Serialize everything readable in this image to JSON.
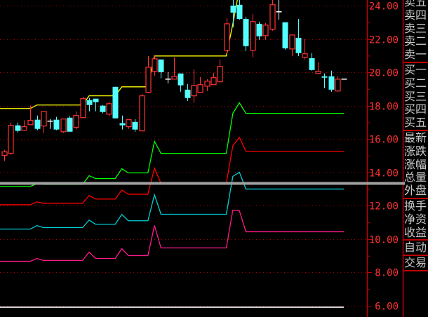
{
  "chart_data": {
    "type": "candlestick",
    "title": "",
    "ylim": [
      5.7,
      24.35
    ],
    "y_ticks": [
      "24.00",
      "22.00",
      "20.00",
      "18.00",
      "16.00",
      "14.00",
      "12.00",
      "10.00",
      "8.00",
      "6.00"
    ],
    "grid": true,
    "colors": {
      "up": "#ff3333",
      "down": "#54ffff",
      "doji": "#ffffff",
      "grid": "#b00000",
      "axis": "#c00000",
      "axis_text": "#ff3333"
    },
    "candles": [
      [
        15.02,
        15.35,
        14.68,
        15.23
      ],
      [
        15.14,
        16.99,
        15.06,
        16.82
      ],
      [
        16.82,
        16.99,
        16.4,
        16.49
      ],
      [
        16.53,
        17.12,
        16.49,
        16.74
      ],
      [
        16.86,
        18.0,
        16.86,
        17.12
      ],
      [
        17.16,
        17.41,
        16.53,
        16.61
      ],
      [
        16.78,
        17.66,
        16.36,
        17.66
      ],
      [
        17.07,
        17.2,
        16.61,
        17.07
      ],
      [
        17.16,
        17.33,
        16.53,
        16.57
      ],
      [
        16.44,
        17.2,
        16.36,
        17.2
      ],
      [
        17.28,
        17.37,
        16.44,
        16.44
      ],
      [
        16.7,
        17.66,
        16.57,
        17.41
      ],
      [
        17.28,
        18.54,
        17.28,
        18.42
      ],
      [
        18.33,
        18.46,
        17.66,
        18.04
      ],
      [
        18.42,
        18.42,
        17.66,
        18.21
      ],
      [
        18.0,
        18.04,
        17.54,
        17.62
      ],
      [
        17.49,
        18.21,
        17.37,
        18.12
      ],
      [
        19.13,
        19.13,
        17.24,
        17.24
      ],
      [
        16.95,
        17.41,
        16.57,
        16.82
      ],
      [
        16.74,
        17.16,
        16.61,
        17.16
      ],
      [
        17.03,
        17.2,
        16.44,
        16.57
      ],
      [
        16.49,
        18.71,
        16.44,
        18.59
      ],
      [
        18.8,
        20.98,
        18.75,
        20.31
      ],
      [
        20.06,
        20.98,
        19.8,
        20.81
      ],
      [
        20.77,
        20.77,
        19.64,
        20.01
      ],
      [
        19.59,
        20.01,
        19.34,
        19.59
      ],
      [
        19.59,
        20.9,
        19.59,
        19.76
      ],
      [
        19.93,
        19.93,
        18.84,
        19.22
      ],
      [
        18.96,
        19.3,
        18.29,
        18.46
      ],
      [
        18.59,
        20.18,
        18.17,
        19.22
      ],
      [
        18.8,
        19.72,
        18.8,
        19.26
      ],
      [
        19.17,
        19.59,
        18.88,
        19.47
      ],
      [
        19.26,
        19.97,
        19.26,
        19.68
      ],
      [
        19.43,
        20.77,
        19.43,
        20.35
      ],
      [
        21.32,
        23.25,
        21.11,
        22.91
      ],
      [
        24.0,
        24.34,
        22.7,
        23.58
      ],
      [
        24.05,
        24.34,
        23.16,
        23.2
      ],
      [
        23.2,
        23.33,
        21.27,
        21.57
      ],
      [
        21.32,
        23.5,
        20.9,
        23.04
      ],
      [
        22.91,
        23.04,
        21.95,
        22.16
      ],
      [
        22.2,
        22.95,
        21.95,
        22.83
      ],
      [
        22.58,
        24.34,
        22.49,
        24.05
      ],
      [
        23.63,
        24.34,
        23.16,
        23.63
      ],
      [
        23.0,
        23.0,
        21.36,
        21.44
      ],
      [
        21.4,
        22.24,
        20.98,
        22.24
      ],
      [
        22.07,
        23.2,
        20.98,
        21.15
      ],
      [
        20.9,
        21.99,
        20.77,
        21.11
      ],
      [
        20.85,
        21.15,
        20.1,
        20.14
      ],
      [
        19.93,
        20.6,
        19.93,
        20.06
      ],
      [
        19.76,
        19.93,
        19.05,
        19.68
      ],
      [
        19.76,
        20.1,
        18.84,
        18.96
      ],
      [
        18.88,
        19.76,
        18.84,
        19.59
      ],
      [
        19.59,
        19.59,
        19.59,
        19.59
      ]
    ],
    "series": [
      {
        "color": "#ffff00",
        "values": [
          17.83,
          17.83,
          17.83,
          17.83,
          17.83,
          18.04,
          18.04,
          18.04,
          18.04,
          18.04,
          18.04,
          18.04,
          18.04,
          18.59,
          18.59,
          18.59,
          18.59,
          18.59,
          19.13,
          19.13,
          19.13,
          19.13,
          19.13,
          20.98,
          20.98,
          20.98,
          20.98,
          20.98,
          20.98,
          20.98,
          20.98,
          20.98,
          20.98,
          20.98,
          20.98,
          22.9,
          25.0
        ]
      },
      {
        "color": "#00ff00",
        "values": [
          13.16,
          13.16,
          13.16,
          13.16,
          13.16,
          13.32,
          13.28,
          13.28,
          13.28,
          13.28,
          13.28,
          13.28,
          13.28,
          13.8,
          13.63,
          13.63,
          13.63,
          13.63,
          14.22,
          13.97,
          13.97,
          13.97,
          13.97,
          15.86,
          15.14,
          15.14,
          15.14,
          15.14,
          15.14,
          15.14,
          15.14,
          15.14,
          15.14,
          15.14,
          15.14,
          17.54,
          18.17,
          17.54,
          17.54,
          17.54,
          17.54,
          17.54,
          17.54,
          17.54,
          17.54,
          17.54,
          17.54,
          17.54,
          17.54,
          17.54,
          17.54,
          17.54,
          17.54
        ]
      },
      {
        "color": "#ff0000",
        "values": [
          12.06,
          12.06,
          12.06,
          12.06,
          12.06,
          12.23,
          12.15,
          12.15,
          12.15,
          12.15,
          12.15,
          12.15,
          12.15,
          12.61,
          12.4,
          12.4,
          12.4,
          12.4,
          12.94,
          12.69,
          12.69,
          12.69,
          12.69,
          14.26,
          13.34,
          13.34,
          13.34,
          13.34,
          13.34,
          13.34,
          13.34,
          13.34,
          13.34,
          13.34,
          13.34,
          15.6,
          16.1,
          15.27,
          15.27,
          15.27,
          15.27,
          15.27,
          15.27,
          15.27,
          15.27,
          15.27,
          15.27,
          15.27,
          15.27,
          15.27,
          15.27,
          15.27,
          15.27
        ]
      },
      {
        "color": "#00d0d8",
        "values": [
          10.6,
          10.6,
          10.6,
          10.6,
          10.6,
          10.81,
          10.69,
          10.69,
          10.69,
          10.69,
          10.69,
          10.69,
          10.69,
          11.14,
          10.89,
          10.89,
          10.89,
          10.89,
          11.48,
          11.1,
          11.1,
          11.1,
          11.1,
          12.66,
          11.49,
          11.49,
          11.49,
          11.49,
          11.49,
          11.49,
          11.49,
          11.49,
          11.49,
          11.49,
          11.49,
          13.76,
          14.01,
          13.0,
          13.0,
          13.0,
          13.0,
          13.0,
          13.0,
          13.0,
          13.0,
          13.0,
          13.0,
          13.0,
          13.0,
          13.0,
          13.0,
          13.0,
          13.0
        ]
      },
      {
        "color": "#ff1a8c",
        "values": [
          8.67,
          8.67,
          8.67,
          8.67,
          8.67,
          8.84,
          8.72,
          8.72,
          8.72,
          8.72,
          8.72,
          8.72,
          8.72,
          9.22,
          8.84,
          8.84,
          8.84,
          8.84,
          9.43,
          9.01,
          9.01,
          9.01,
          9.01,
          10.82,
          9.47,
          9.47,
          9.47,
          9.47,
          9.47,
          9.47,
          9.47,
          9.47,
          9.47,
          9.47,
          9.47,
          11.74,
          11.7,
          10.44,
          10.44,
          10.44,
          10.44,
          10.44,
          10.44,
          10.44,
          10.44,
          10.44,
          10.44,
          10.44,
          10.44,
          10.44,
          10.44,
          10.44,
          10.44
        ]
      }
    ],
    "horizontal_lines": [
      {
        "price": 13.34,
        "color": "#a0a0a0"
      },
      {
        "price": 5.92,
        "color": "#d0d0d0"
      }
    ]
  },
  "panel": {
    "rows": [
      {
        "label": "卖五",
        "sep_after": false
      },
      {
        "label": "卖四",
        "sep_after": false
      },
      {
        "label": "卖三",
        "sep_after": false
      },
      {
        "label": "卖二",
        "sep_after": false
      },
      {
        "label": "卖一",
        "sep_after": true
      },
      {
        "label": "买一",
        "sep_after": false
      },
      {
        "label": "买二",
        "sep_after": false
      },
      {
        "label": "买三",
        "sep_after": false
      },
      {
        "label": "买四",
        "sep_after": false
      },
      {
        "label": "买五",
        "sep_after": true
      },
      {
        "label": "最新",
        "sep_after": false
      },
      {
        "label": "涨跌",
        "sep_after": false
      },
      {
        "label": "涨幅",
        "sep_after": false
      },
      {
        "label": "总量",
        "sep_after": false
      },
      {
        "label": "外盘",
        "sep_after": true
      },
      {
        "label": "换手",
        "sep_after": false
      },
      {
        "label": "净资",
        "sep_after": false
      },
      {
        "label": "收益",
        "sep_after": true
      },
      {
        "label": "自动",
        "sep_after": true
      },
      {
        "label": "交易",
        "sep_after": true
      }
    ]
  }
}
